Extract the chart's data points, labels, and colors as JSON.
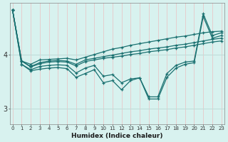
{
  "xlabel": "Humidex (Indice chaleur)",
  "bg_color": "#d8f2ef",
  "grid_color_v": "#c0deda",
  "grid_color_h": "#e8c8c8",
  "line_color": "#1a7070",
  "x_ticks": [
    0,
    1,
    2,
    3,
    4,
    5,
    6,
    7,
    8,
    9,
    10,
    11,
    12,
    13,
    14,
    15,
    16,
    17,
    18,
    19,
    20,
    21,
    22,
    23
  ],
  "y_ticks": [
    3,
    4
  ],
  "ylim": [
    2.72,
    4.95
  ],
  "xlim": [
    -0.3,
    23.3
  ],
  "series": {
    "line1": [
      4.82,
      3.88,
      3.82,
      3.9,
      3.91,
      3.92,
      3.93,
      3.9,
      3.95,
      4.0,
      4.05,
      4.1,
      4.13,
      4.17,
      4.2,
      4.23,
      4.26,
      4.29,
      4.32,
      4.34,
      4.37,
      4.4,
      4.42,
      4.43
    ],
    "line2": [
      4.82,
      3.88,
      3.78,
      3.85,
      3.88,
      3.89,
      3.88,
      3.82,
      3.9,
      3.93,
      3.96,
      3.99,
      4.02,
      4.05,
      4.07,
      4.1,
      4.12,
      4.14,
      4.17,
      4.19,
      4.22,
      4.25,
      4.28,
      4.3
    ],
    "line3": [
      4.82,
      3.88,
      3.77,
      3.83,
      3.86,
      3.87,
      3.86,
      3.79,
      3.87,
      3.9,
      3.93,
      3.95,
      3.97,
      4.0,
      4.02,
      4.05,
      4.07,
      4.09,
      4.12,
      4.14,
      4.17,
      4.2,
      4.23,
      4.25
    ],
    "line4": [
      4.82,
      3.82,
      3.72,
      3.78,
      3.8,
      3.81,
      3.8,
      3.66,
      3.75,
      3.8,
      3.6,
      3.63,
      3.48,
      3.55,
      3.57,
      3.22,
      3.22,
      3.65,
      3.8,
      3.86,
      3.88,
      4.75,
      4.35,
      4.4
    ],
    "line5": [
      4.82,
      3.82,
      3.7,
      3.73,
      3.75,
      3.76,
      3.74,
      3.58,
      3.65,
      3.72,
      3.48,
      3.52,
      3.35,
      3.52,
      3.57,
      3.18,
      3.18,
      3.58,
      3.75,
      3.82,
      3.85,
      4.7,
      4.3,
      4.35
    ]
  }
}
